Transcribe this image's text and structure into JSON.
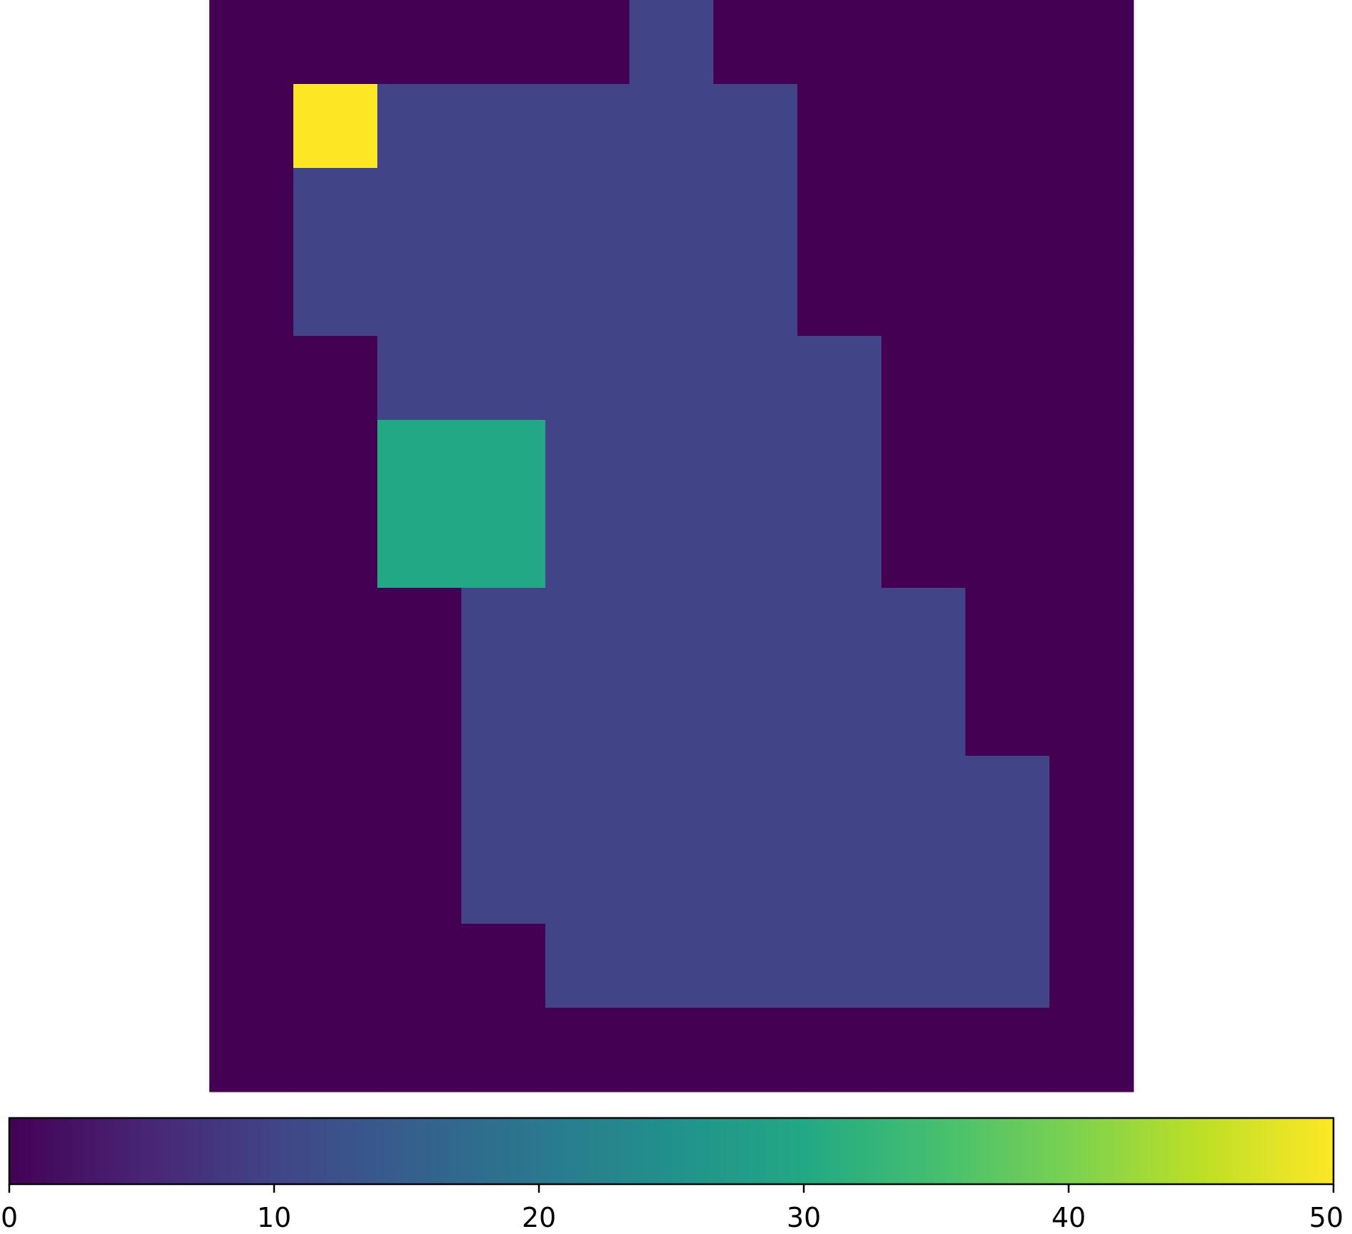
{
  "chart_data": {
    "type": "heatmap",
    "colormap": "viridis",
    "colorbar": {
      "orientation": "horizontal",
      "placement": "bottom",
      "range": [
        0,
        50
      ],
      "ticks": [
        0,
        10,
        20,
        30,
        40,
        50
      ],
      "tick_labels": [
        "0",
        "10",
        "20",
        "30",
        "40",
        "50"
      ]
    },
    "axes_visible": false,
    "rows": 13,
    "cols": 11,
    "grid": [
      [
        0,
        0,
        0,
        0,
        0,
        10,
        0,
        0,
        0,
        0,
        0
      ],
      [
        0,
        50,
        10,
        10,
        10,
        10,
        10,
        0,
        0,
        0,
        0
      ],
      [
        0,
        10,
        10,
        10,
        10,
        10,
        10,
        0,
        0,
        0,
        0
      ],
      [
        0,
        10,
        10,
        10,
        10,
        10,
        10,
        0,
        0,
        0,
        0
      ],
      [
        0,
        0,
        10,
        10,
        10,
        10,
        10,
        10,
        0,
        0,
        0
      ],
      [
        0,
        0,
        30,
        30,
        10,
        10,
        10,
        10,
        0,
        0,
        0
      ],
      [
        0,
        0,
        30,
        30,
        10,
        10,
        10,
        10,
        0,
        0,
        0
      ],
      [
        0,
        0,
        0,
        10,
        10,
        10,
        10,
        10,
        10,
        0,
        0
      ],
      [
        0,
        0,
        0,
        10,
        10,
        10,
        10,
        10,
        10,
        0,
        0
      ],
      [
        0,
        0,
        0,
        10,
        10,
        10,
        10,
        10,
        10,
        10,
        0
      ],
      [
        0,
        0,
        0,
        10,
        10,
        10,
        10,
        10,
        10,
        10,
        0
      ],
      [
        0,
        0,
        0,
        0,
        10,
        10,
        10,
        10,
        10,
        10,
        0
      ],
      [
        0,
        0,
        0,
        0,
        0,
        0,
        0,
        0,
        0,
        0,
        0
      ]
    ]
  }
}
